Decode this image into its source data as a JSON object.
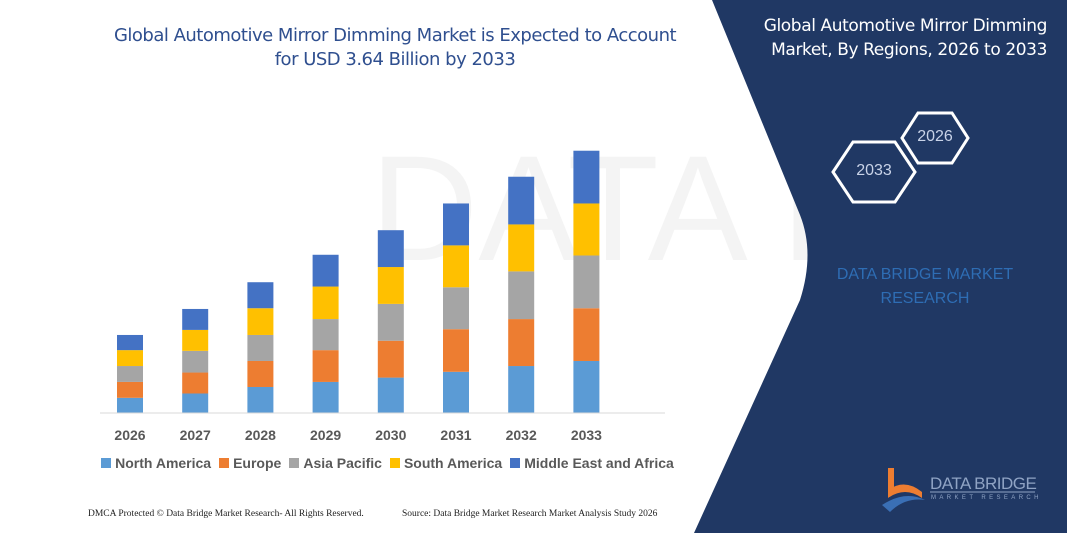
{
  "header": {
    "title": "Global Automotive Mirror Dimming Market is Expected to Account for USD 3.64 Billion by 2033"
  },
  "side_panel": {
    "title": "Global Automotive Mirror Dimming Market, By Regions, 2026 to 2033",
    "hex_start": "2026",
    "hex_end": "2033",
    "brand_text": "DATA BRIDGE MARKET RESEARCH",
    "logo_title": "DATA BRIDGE",
    "logo_subtitle": "MARKET RESEARCH",
    "bg_color": "#203864"
  },
  "footer": {
    "left": "DMCA Protected © Data Bridge Market Research-  All Rights Reserved.",
    "right": "Source: Data Bridge Market Research  Market Analysis Study 2026"
  },
  "chart_data": {
    "type": "bar",
    "stacked": true,
    "title": "Global Automotive Mirror Dimming Market is Expected to Account for USD 3.64 Billion by 2033",
    "xlabel": "",
    "ylabel": "",
    "unit": "USD Billion (estimated)",
    "ylim": [
      0,
      3.8
    ],
    "grid": false,
    "legend_position": "bottom",
    "categories": [
      "2026",
      "2027",
      "2028",
      "2029",
      "2030",
      "2031",
      "2032",
      "2033"
    ],
    "series": [
      {
        "name": "North America",
        "color": "#5B9BD5",
        "values": [
          0.21,
          0.27,
          0.36,
          0.43,
          0.49,
          0.57,
          0.65,
          0.72
        ]
      },
      {
        "name": "Europe",
        "color": "#ED7D31",
        "values": [
          0.22,
          0.29,
          0.36,
          0.44,
          0.51,
          0.59,
          0.65,
          0.73
        ]
      },
      {
        "name": "Asia Pacific",
        "color": "#A5A5A5",
        "values": [
          0.22,
          0.3,
          0.36,
          0.43,
          0.51,
          0.58,
          0.66,
          0.73
        ]
      },
      {
        "name": "South America",
        "color": "#FFC000",
        "values": [
          0.22,
          0.29,
          0.37,
          0.45,
          0.51,
          0.58,
          0.65,
          0.72
        ]
      },
      {
        "name": "Middle East and Africa",
        "color": "#4472C4",
        "values": [
          0.21,
          0.29,
          0.36,
          0.44,
          0.51,
          0.58,
          0.66,
          0.73
        ]
      }
    ]
  }
}
